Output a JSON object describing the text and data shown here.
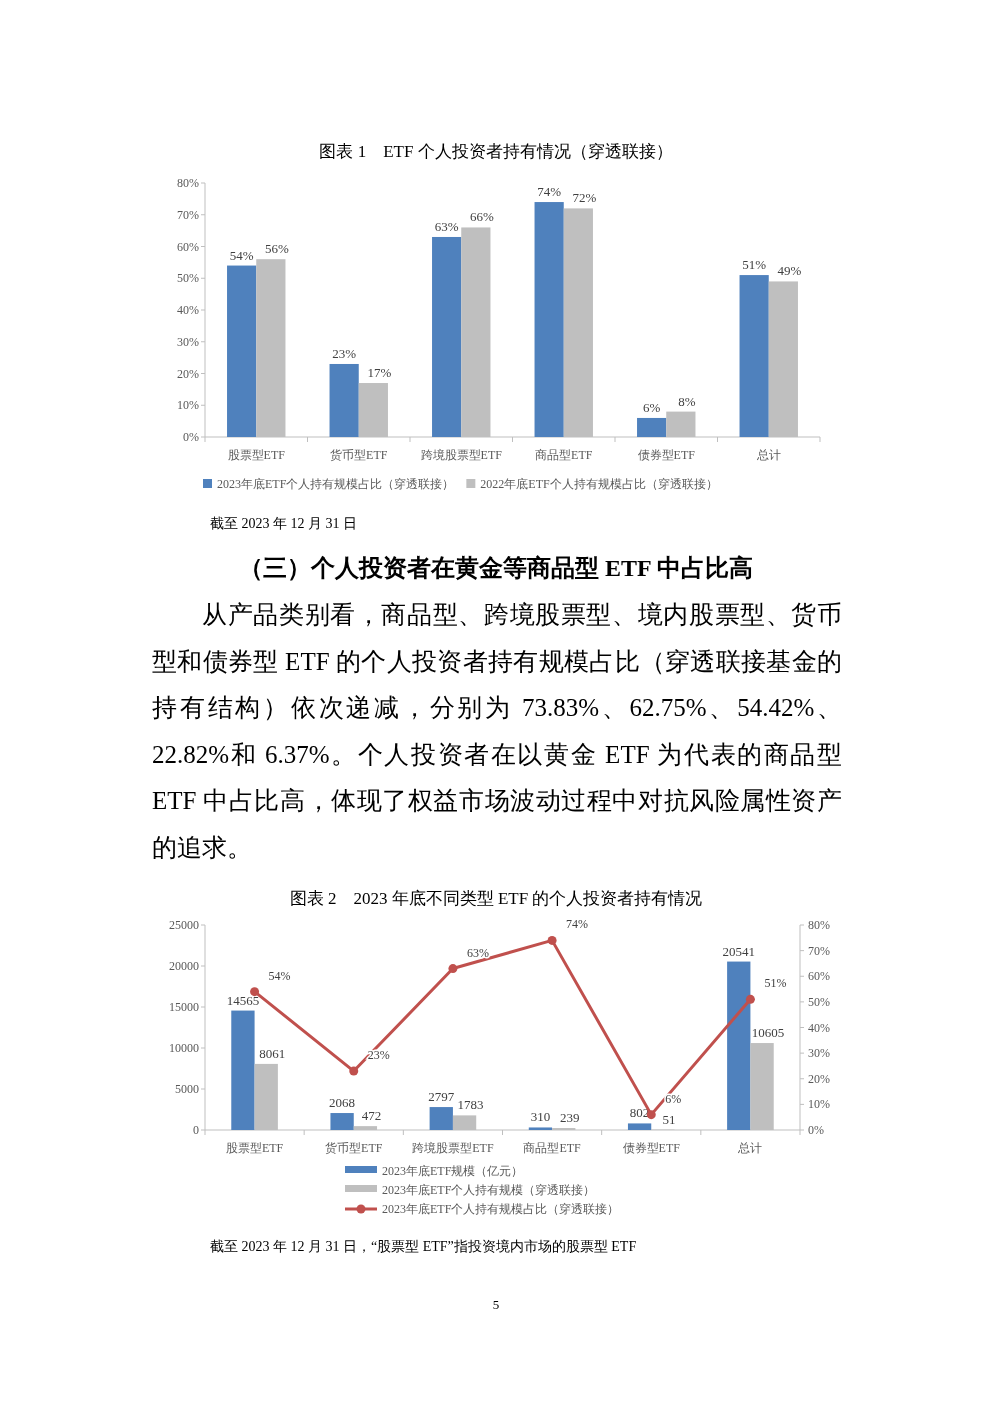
{
  "chart_data": [
    {
      "type": "bar",
      "title": "图表 1　ETF 个人投资者持有情况（穿透联接）",
      "categories": [
        "股票型ETF",
        "货币型ETF",
        "跨境股票型ETF",
        "商品型ETF",
        "债券型ETF",
        "总计"
      ],
      "series": [
        {
          "name": "2023年底ETF个人持有规模占比（穿透联接）",
          "color": "#4f81bd",
          "values": [
            54,
            23,
            63,
            74,
            6,
            51
          ],
          "value_labels": [
            "54%",
            "23%",
            "63%",
            "74%",
            "6%",
            "51%"
          ]
        },
        {
          "name": "2022年底ETF个人持有规模占比（穿透联接）",
          "color": "#bfbfbf",
          "values": [
            56,
            17,
            66,
            72,
            8,
            49
          ],
          "value_labels": [
            "56%",
            "17%",
            "66%",
            "72%",
            "8%",
            "49%"
          ]
        }
      ],
      "ylim": [
        0,
        80
      ],
      "yticks": [
        {
          "value": 0,
          "label": "0%"
        },
        {
          "value": 10,
          "label": "10%"
        },
        {
          "value": 20,
          "label": "20%"
        },
        {
          "value": 30,
          "label": "30%"
        },
        {
          "value": 40,
          "label": "40%"
        },
        {
          "value": 50,
          "label": "50%"
        },
        {
          "value": 60,
          "label": "60%"
        },
        {
          "value": 70,
          "label": "70%"
        },
        {
          "value": 80,
          "label": "80%"
        }
      ],
      "legend": "bottom",
      "annotations": [
        "截至 2023 年 12 月 31 日",
        "（三）个人投资者在黄金等商品型 ETF 中占比高",
        "从产品类别看，商品型、跨境股票型、境内股票型、货币型和债券型 ETF 的个人投资者持有规模占比（穿透联接基金的持有结构）依次递减，分别为 73.83%、62.75%、54.42%、22.82%和 6.37%。个人投资者在以黄金 ETF 为代表的商品型 ETF 中占比高，体现了权益市场波动过程中对抗风险属性资产的追求。"
      ]
    },
    {
      "type": "bar",
      "title": "图表 2　2023 年底不同类型 ETF 的个人投资者持有情况",
      "categories": [
        "股票型ETF",
        "货币型ETF",
        "跨境股票型ETF",
        "商品型ETF",
        "债券型ETF",
        "总计"
      ],
      "series": [
        {
          "name": "2023年底ETF规模（亿元）",
          "color": "#4f81bd",
          "values": [
            14565,
            2068,
            2797,
            310,
            802,
            20541
          ],
          "value_labels": [
            "14565",
            "2068",
            "2797",
            "310",
            "802",
            "20541"
          ]
        },
        {
          "name": "2023年底ETF个人持有规模（穿透联接）",
          "color": "#bfbfbf",
          "values": [
            8061,
            472,
            1783,
            239,
            51,
            10605
          ],
          "value_labels": [
            "8061",
            "472",
            "1783",
            "239",
            "51",
            "10605"
          ]
        },
        {
          "name": "2023年底ETF个人持有规模占比（穿透联接）",
          "type": "line",
          "axis": "y2",
          "marker": "circle",
          "color": "#c0504d",
          "values": [
            54,
            23,
            63,
            74,
            6,
            51
          ],
          "value_labels": [
            "54%",
            "23%",
            "63%",
            "74%",
            "6%",
            "51%"
          ]
        }
      ],
      "ylim": [
        0,
        25000
      ],
      "yticks": [
        0,
        5000,
        10000,
        15000,
        20000,
        25000
      ],
      "y2lim": [
        0,
        80
      ],
      "y2ticks": [
        {
          "value": 0,
          "label": "0%"
        },
        {
          "value": 10,
          "label": "10%"
        },
        {
          "value": 20,
          "label": "20%"
        },
        {
          "value": 30,
          "label": "30%"
        },
        {
          "value": 40,
          "label": "40%"
        },
        {
          "value": 50,
          "label": "50%"
        },
        {
          "value": 60,
          "label": "60%"
        },
        {
          "value": 70,
          "label": "70%"
        },
        {
          "value": 80,
          "label": "80%"
        }
      ],
      "legend": "bottom",
      "annotations": [
        "截至 2023 年 12 月 31 日，“股票型 ETF”指投资境内市场的股票型 ETF",
        "5"
      ]
    }
  ]
}
